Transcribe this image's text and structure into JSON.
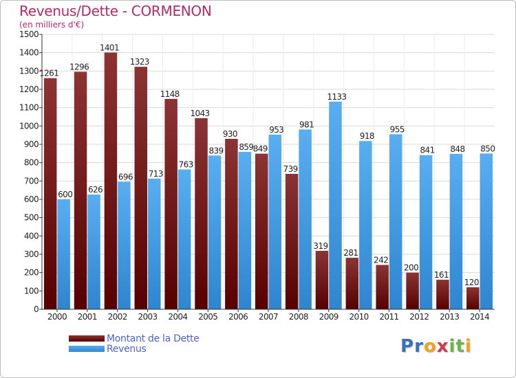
{
  "chart_data": {
    "type": "bar",
    "title": "Revenus/Dette - CORMENON",
    "subtitle": "(en milliers d'€)",
    "categories": [
      "2000",
      "2001",
      "2002",
      "2003",
      "2004",
      "2005",
      "2006",
      "2007",
      "2008",
      "2009",
      "2010",
      "2011",
      "2012",
      "2013",
      "2014"
    ],
    "series": [
      {
        "name": "Montant de la Dette",
        "color": "#7a1c1c",
        "values": [
          1261,
          1296,
          1401,
          1323,
          1148,
          1043,
          930,
          849,
          739,
          319,
          281,
          242,
          200,
          161,
          120
        ]
      },
      {
        "name": "Revenus",
        "color": "#4da3e6",
        "values": [
          600,
          626,
          696,
          713,
          763,
          839,
          859,
          953,
          981,
          1133,
          918,
          955,
          841,
          848,
          850
        ]
      }
    ],
    "ylim": [
      0,
      1500
    ],
    "yticks": [
      0,
      100,
      200,
      300,
      400,
      500,
      600,
      700,
      800,
      900,
      1000,
      1100,
      1200,
      1300,
      1400,
      1500
    ],
    "grid": true,
    "legend_position": "bottom-left"
  },
  "brand": {
    "letters": [
      {
        "char": "P",
        "color": "#3a6fc4"
      },
      {
        "char": "r",
        "color": "#3a6fc4"
      },
      {
        "char": "o",
        "color": "#f2a21b"
      },
      {
        "char": "x",
        "color": "#d23b4a"
      },
      {
        "char": "i",
        "color": "#67b548"
      },
      {
        "char": "t",
        "color": "#67b548"
      },
      {
        "char": "i",
        "color": "#f2a21b"
      }
    ]
  }
}
